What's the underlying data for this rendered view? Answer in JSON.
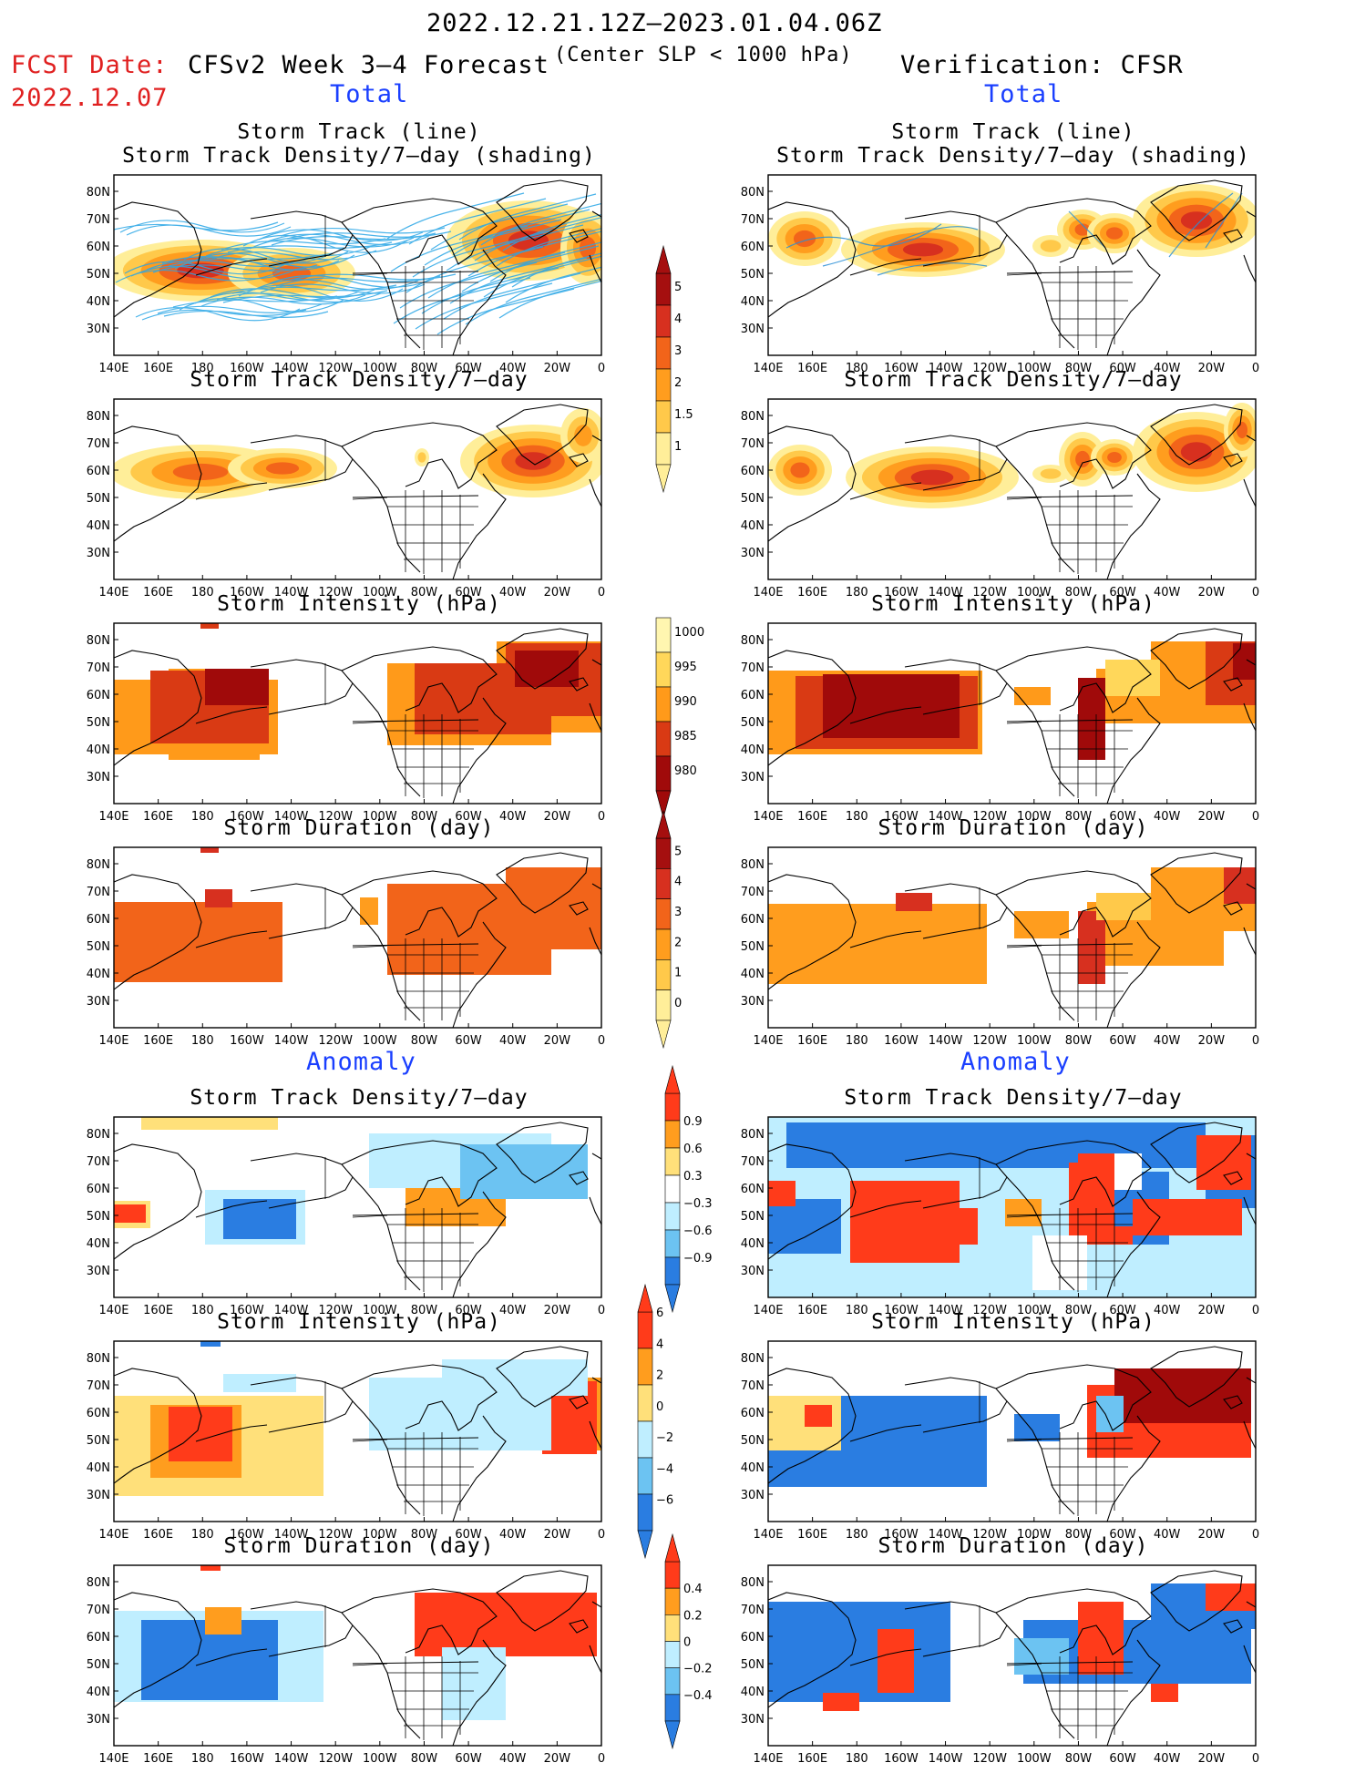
{
  "header": {
    "period": "2022.12.21.12Z–2023.01.04.06Z",
    "fcst_label": "FCST Date:",
    "fcst_date": "2022.12.07",
    "model_title": "CFSv2 Week 3–4 Forecast",
    "criterion": "(Center SLP < 1000 hPa)",
    "verification": "Verification: CFSR",
    "total_label": "Total",
    "anomaly_label": "Anomaly"
  },
  "panel_titles": {
    "track_line": "Storm Track (line)",
    "track_density_shading": "Storm Track Density/7–day (shading)",
    "track_density": "Storm Track Density/7–day",
    "intensity": "Storm Intensity (hPa)",
    "duration": "Storm Duration (day)"
  },
  "axes": {
    "lat_ticks": [
      "80N",
      "70N",
      "60N",
      "50N",
      "40N",
      "30N"
    ],
    "lon_ticks": [
      "140E",
      "160E",
      "180",
      "160W",
      "140W",
      "120W",
      "100W",
      "80W",
      "60W",
      "40W",
      "20W",
      "0"
    ]
  },
  "colorbars": {
    "density_total": {
      "labels": [
        "5",
        "4",
        "3",
        "2",
        "1.5",
        "1"
      ],
      "colors": [
        "#a50f0f",
        "#d7301f",
        "#f2641a",
        "#ff9d1e",
        "#ffc94a",
        "#ffee99"
      ]
    },
    "intensity_total": {
      "labels": [
        "1000",
        "995",
        "990",
        "985",
        "980"
      ],
      "colors": [
        "#fff6b0",
        "#ffd75a",
        "#ff9a1a",
        "#d93a14",
        "#a00a0a"
      ]
    },
    "duration_total": {
      "labels": [
        "5",
        "4",
        "3",
        "2",
        "1",
        "0"
      ],
      "colors": [
        "#a50f0f",
        "#d7301f",
        "#f2641a",
        "#ff9d1e",
        "#ffc94a",
        "#ffee99"
      ]
    },
    "density_anom": {
      "labels": [
        "0.9",
        "0.6",
        "0.3",
        "−0.3",
        "−0.6",
        "−0.9"
      ],
      "colors": [
        "#ff3b1a",
        "#ff9d1e",
        "#ffe07a",
        "#ffffff",
        "#bfeeff",
        "#6cc3f2",
        "#2a7de1"
      ]
    },
    "intensity_anom": {
      "labels": [
        "6",
        "4",
        "2",
        "0",
        "−2",
        "−4",
        "−6"
      ],
      "colors": [
        "#ff3b1a",
        "#ff9d1e",
        "#ffe07a",
        "#bfeeff",
        "#6cc3f2",
        "#2a7de1"
      ]
    },
    "duration_anom": {
      "labels": [
        "0.4",
        "0.2",
        "0",
        "−0.2",
        "−0.4"
      ],
      "colors": [
        "#ff3b1a",
        "#ff9d1e",
        "#ffe07a",
        "#bfeeff",
        "#6cc3f2",
        "#2a7de1"
      ]
    }
  }
}
